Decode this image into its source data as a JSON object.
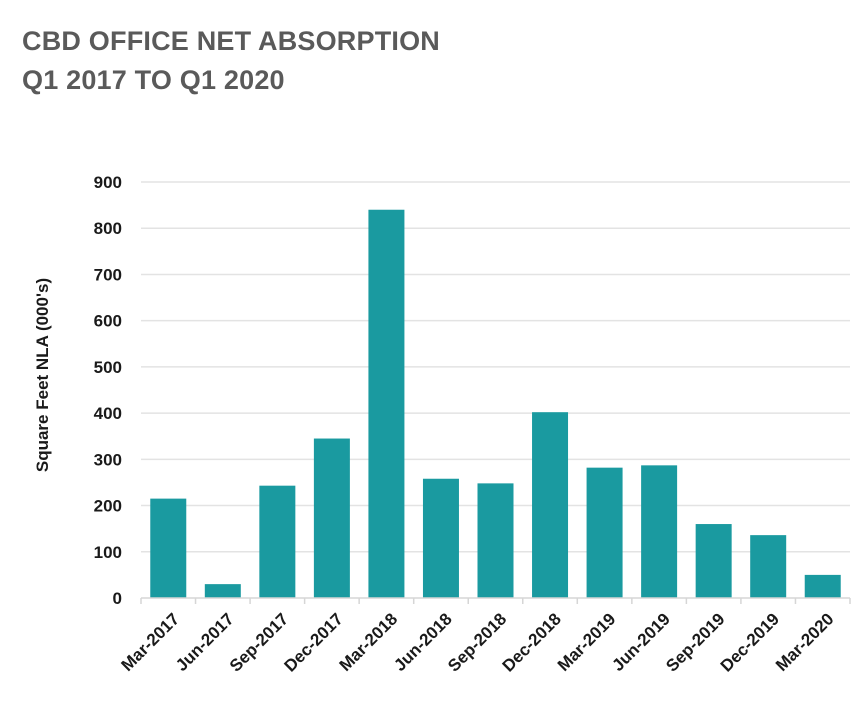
{
  "chart_data": {
    "type": "bar",
    "title_line1": "CBD OFFICE NET ABSORPTION",
    "title_line2": "Q1 2017 TO Q1 2020",
    "xlabel": "",
    "ylabel": "Square Feet NLA (000's)",
    "ylim": [
      0,
      900
    ],
    "yticks": [
      0,
      100,
      200,
      300,
      400,
      500,
      600,
      700,
      800,
      900
    ],
    "grid": true,
    "legend": "none",
    "bar_color": "#1a9aa0",
    "categories": [
      "Mar-2017",
      "Jun-2017",
      "Sep-2017",
      "Dec-2017",
      "Mar-2018",
      "Jun-2018",
      "Sep-2018",
      "Dec-2018",
      "Mar-2019",
      "Jun-2019",
      "Sep-2019",
      "Dec-2019",
      "Mar-2020"
    ],
    "values": [
      215,
      30,
      243,
      345,
      840,
      258,
      248,
      402,
      282,
      287,
      160,
      136,
      50
    ]
  }
}
